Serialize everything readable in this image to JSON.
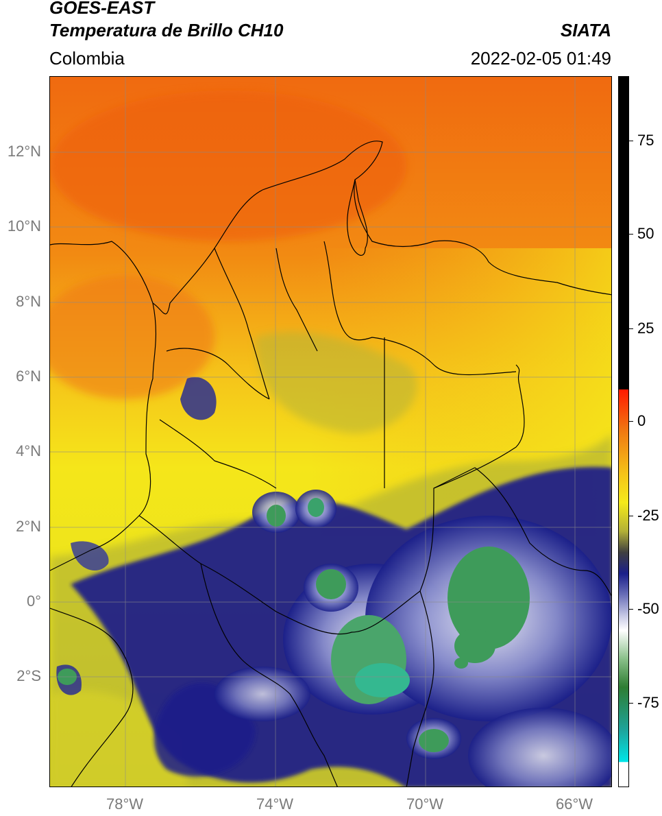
{
  "header": {
    "satellite": "GOES-EAST",
    "product": "Temperatura de Brillo CH10",
    "organization": "SIATA",
    "region": "Colombia",
    "timestamp": "2022-02-05 01:49"
  },
  "map": {
    "lat_range": [
      -5,
      14
    ],
    "lon_range": [
      -80,
      -65
    ],
    "lat_ticks": [
      {
        "value": 12,
        "label": "12°N"
      },
      {
        "value": 10,
        "label": "10°N"
      },
      {
        "value": 8,
        "label": "8°N"
      },
      {
        "value": 6,
        "label": "6°N"
      },
      {
        "value": 4,
        "label": "4°N"
      },
      {
        "value": 2,
        "label": "2°N"
      },
      {
        "value": 0,
        "label": "0°"
      },
      {
        "value": -2,
        "label": "2°S"
      }
    ],
    "lon_ticks": [
      {
        "value": -78,
        "label": "78°W"
      },
      {
        "value": -74,
        "label": "74°W"
      },
      {
        "value": -70,
        "label": "70°W"
      },
      {
        "value": -66,
        "label": "66°W"
      }
    ],
    "colors": {
      "warm": "#f07a12",
      "mid": "#f5e81a",
      "cool": "#b7b832",
      "cold": "#1a1f8a",
      "very_cold": "#3e9b5a"
    }
  },
  "colorbar": {
    "range": [
      -95,
      90
    ],
    "ticks": [
      {
        "value": 75,
        "label": "75"
      },
      {
        "value": 50,
        "label": "50"
      },
      {
        "value": 25,
        "label": "25"
      },
      {
        "value": 0,
        "label": "0"
      },
      {
        "value": -25,
        "label": "-25"
      },
      {
        "value": -50,
        "label": "-50"
      },
      {
        "value": -75,
        "label": "-75"
      }
    ]
  }
}
